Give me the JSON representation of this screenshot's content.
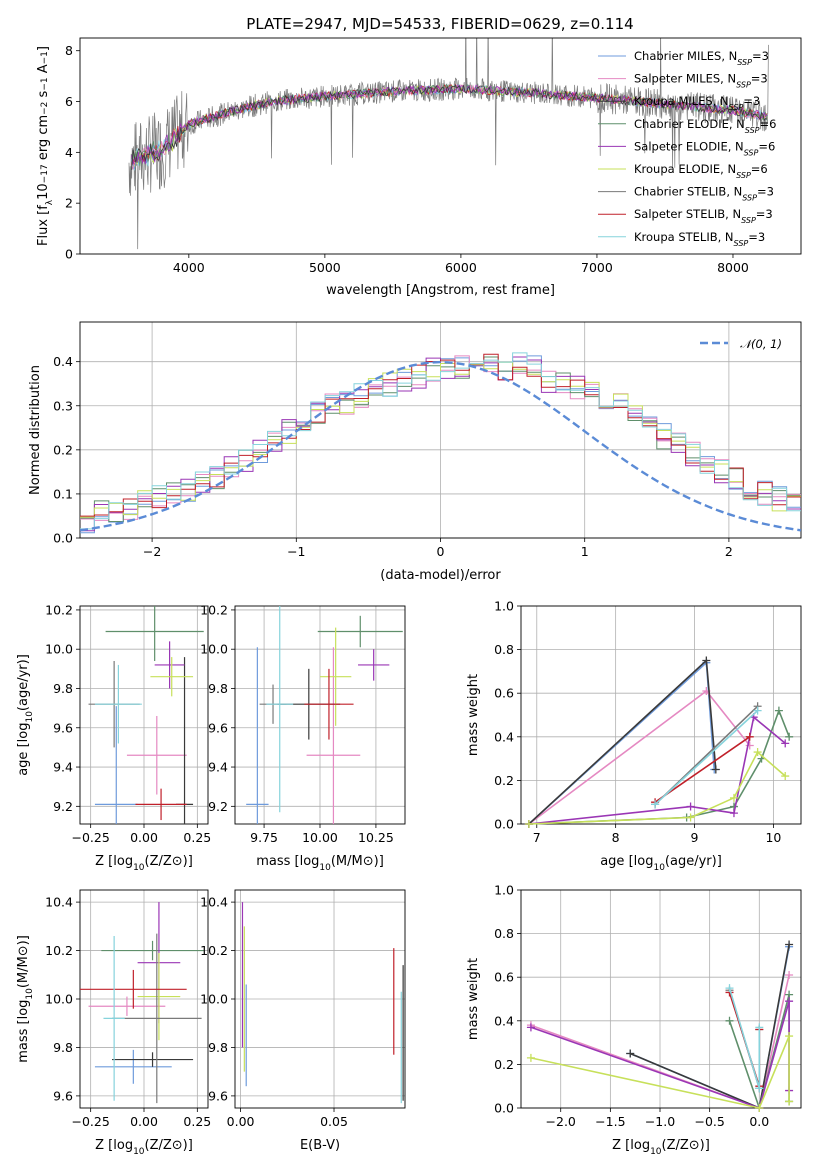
{
  "figure_title": "PLATE=2947, MJD=54533, FIBERID=0629, z=0.114",
  "colors": [
    "#6f9bdc",
    "#e589c2",
    "#3a3a3a",
    "#5f8f6b",
    "#9a36b5",
    "#c7e05a",
    "#7a7a7a",
    "#c0202a",
    "#86d3dc"
  ],
  "chart_data": [
    {
      "id": "spectrum",
      "type": "line",
      "xlabel": "wavelength [Angstrom, rest frame]",
      "ylabel": "Flux [f_λ 10^-17 erg cm^-2 s^-1 A^-1]",
      "xlim": [
        3200,
        8500
      ],
      "ylim": [
        0,
        8.5
      ],
      "xticks": [
        "4000",
        "5000",
        "6000",
        "7000",
        "8000"
      ],
      "yticks": [
        "0",
        "2",
        "4",
        "6",
        "8"
      ],
      "legend_position": "right",
      "continuum": {
        "x": [
          3600,
          3800,
          4000,
          4300,
          4600,
          5000,
          5500,
          6000,
          6500,
          7000,
          7500,
          8000,
          8250
        ],
        "y": [
          3.7,
          4.1,
          5.1,
          5.6,
          6.0,
          6.2,
          6.4,
          6.5,
          6.35,
          6.15,
          5.9,
          5.65,
          5.4
        ]
      },
      "legend": [
        {
          "main": "Chabrier MILES, N",
          "sub": "SSP",
          "tail": "=3"
        },
        {
          "main": "Salpeter MILES, N",
          "sub": "SSP",
          "tail": "=3"
        },
        {
          "main": "Kroupa MILES, N",
          "sub": "SSP",
          "tail": "=3"
        },
        {
          "main": "Chabrier ELODIE, N",
          "sub": "SSP",
          "tail": "=6"
        },
        {
          "main": "Salpeter ELODIE, N",
          "sub": "SSP",
          "tail": "=6"
        },
        {
          "main": "Kroupa ELODIE, N",
          "sub": "SSP",
          "tail": "=6"
        },
        {
          "main": "Chabrier STELIB, N",
          "sub": "SSP",
          "tail": "=3"
        },
        {
          "main": "Salpeter STELIB, N",
          "sub": "SSP",
          "tail": "=3"
        },
        {
          "main": "Kroupa STELIB, N",
          "sub": "SSP",
          "tail": "=3"
        }
      ]
    },
    {
      "id": "residual-histogram",
      "type": "bar",
      "xlabel": "(data-model)/error",
      "ylabel": "Normed distribution",
      "xlim": [
        -2.5,
        2.5
      ],
      "ylim": [
        0,
        0.49
      ],
      "xticks": [
        "−2",
        "−1",
        "0",
        "1",
        "2"
      ],
      "yticks": [
        "0.0",
        "0.1",
        "0.2",
        "0.3",
        "0.4"
      ],
      "legend": "N(0,1)",
      "bin_edges_start": -2.5,
      "bin_width": 0.1,
      "values": [
        0.03,
        0.06,
        0.06,
        0.07,
        0.08,
        0.09,
        0.1,
        0.11,
        0.13,
        0.14,
        0.16,
        0.18,
        0.2,
        0.22,
        0.24,
        0.26,
        0.28,
        0.3,
        0.31,
        0.32,
        0.34,
        0.35,
        0.36,
        0.37,
        0.38,
        0.38,
        0.39,
        0.39,
        0.39,
        0.37,
        0.4,
        0.39,
        0.36,
        0.35,
        0.34,
        0.33,
        0.31,
        0.3,
        0.28,
        0.26,
        0.23,
        0.21,
        0.19,
        0.17,
        0.15,
        0.13,
        0.11,
        0.1,
        0.09,
        0.08
      ],
      "normal_curve": "gaussian mean 0 sigma 1"
    },
    {
      "id": "age-vs-z",
      "type": "scatter",
      "xlabel": "Z [log10(Z/Z⊙)]",
      "ylabel": "age  [log10(age/yr)]",
      "xlim": [
        -0.3,
        0.3
      ],
      "ylim": [
        9.11,
        10.22
      ],
      "xticks": [
        "−0.25",
        "0.00",
        "0.25"
      ],
      "yticks": [
        "9.2",
        "9.4",
        "9.6",
        "9.8",
        "10.0",
        "10.2"
      ],
      "points": [
        {
          "x": -0.13,
          "y": 9.21,
          "xerr": 0.1,
          "yerr": 0.5,
          "s": 0
        },
        {
          "x": 0.06,
          "y": 9.46,
          "xerr": 0.14,
          "yerr": 0.2,
          "s": 1
        },
        {
          "x": 0.19,
          "y": 9.21,
          "xerr": 0.04,
          "yerr": 0.75,
          "s": 2
        },
        {
          "x": 0.05,
          "y": 10.09,
          "xerr": 0.23,
          "yerr": 0.15,
          "s": 3
        },
        {
          "x": 0.12,
          "y": 9.92,
          "xerr": 0.07,
          "yerr": 0.12,
          "s": 4
        },
        {
          "x": 0.13,
          "y": 9.86,
          "xerr": 0.1,
          "yerr": 0.1,
          "s": 5
        },
        {
          "x": -0.14,
          "y": 9.72,
          "xerr": 0.12,
          "yerr": 0.22,
          "s": 6
        },
        {
          "x": 0.08,
          "y": 9.21,
          "xerr": 0.12,
          "yerr": 0.08,
          "s": 7
        },
        {
          "x": -0.12,
          "y": 9.72,
          "xerr": 0.11,
          "yerr": 0.2,
          "s": 8
        }
      ]
    },
    {
      "id": "age-vs-mass",
      "type": "scatter",
      "xlabel": "mass [log10(M/M⊙)]",
      "ylabel": "",
      "xlim": [
        9.62,
        10.38
      ],
      "ylim": [
        9.11,
        10.22
      ],
      "xticks": [
        "9.75",
        "10.00",
        "10.25"
      ],
      "yticks": [
        "9.2",
        "9.4",
        "9.6",
        "9.8",
        "10.0",
        "10.2"
      ],
      "points": [
        {
          "x": 9.72,
          "y": 9.21,
          "xerr": 0.05,
          "yerr": 0.8,
          "s": 0
        },
        {
          "x": 10.06,
          "y": 9.46,
          "xerr": 0.12,
          "yerr": 0.55,
          "s": 1
        },
        {
          "x": 9.95,
          "y": 9.72,
          "xerr": 0.14,
          "yerr": 0.18,
          "s": 2
        },
        {
          "x": 10.18,
          "y": 10.09,
          "xerr": 0.19,
          "yerr": 0.08,
          "s": 3
        },
        {
          "x": 10.24,
          "y": 9.92,
          "xerr": 0.07,
          "yerr": 0.08,
          "s": 4
        },
        {
          "x": 10.07,
          "y": 9.86,
          "xerr": 0.07,
          "yerr": 0.25,
          "s": 5
        },
        {
          "x": 9.79,
          "y": 9.72,
          "xerr": 0.06,
          "yerr": 0.1,
          "s": 6
        },
        {
          "x": 10.04,
          "y": 9.72,
          "xerr": 0.11,
          "yerr": 0.18,
          "s": 7
        },
        {
          "x": 9.82,
          "y": 9.72,
          "xerr": 0.06,
          "yerr": 0.55,
          "s": 8
        }
      ]
    },
    {
      "id": "mass-weight-vs-age",
      "type": "line",
      "xlabel": "age  [log10(age/yr)]",
      "ylabel": "mass weight",
      "xlim": [
        6.8,
        10.35
      ],
      "ylim": [
        0,
        1.0
      ],
      "xticks": [
        "7",
        "8",
        "9",
        "10"
      ],
      "yticks": [
        "0.0",
        "0.2",
        "0.4",
        "0.6",
        "0.8",
        "1.0"
      ],
      "series": [
        {
          "s": 0,
          "x": [
            6.9,
            9.15,
            9.25
          ],
          "y": [
            0.0,
            0.74,
            0.25
          ]
        },
        {
          "s": 1,
          "x": [
            6.9,
            9.15,
            9.7
          ],
          "y": [
            0.0,
            0.61,
            0.36
          ]
        },
        {
          "s": 2,
          "x": [
            6.9,
            9.15,
            9.27
          ],
          "y": [
            0.0,
            0.75,
            0.25
          ]
        },
        {
          "s": 3,
          "x": [
            6.9,
            8.9,
            9.5,
            9.85,
            10.07,
            10.2
          ],
          "y": [
            0.0,
            0.03,
            0.08,
            0.3,
            0.52,
            0.4
          ]
        },
        {
          "s": 4,
          "x": [
            6.9,
            8.95,
            9.5,
            9.75,
            10.15
          ],
          "y": [
            0.0,
            0.08,
            0.05,
            0.49,
            0.37
          ]
        },
        {
          "s": 5,
          "x": [
            6.9,
            8.95,
            9.5,
            9.8,
            10.15
          ],
          "y": [
            0.0,
            0.03,
            0.12,
            0.33,
            0.22
          ]
        },
        {
          "s": 6,
          "x": [
            8.5,
            9.8
          ],
          "y": [
            0.09,
            0.54
          ]
        },
        {
          "s": 7,
          "x": [
            8.5,
            9.7
          ],
          "y": [
            0.1,
            0.4
          ]
        },
        {
          "s": 8,
          "x": [
            8.5,
            9.8
          ],
          "y": [
            0.09,
            0.52
          ]
        }
      ]
    },
    {
      "id": "mass-vs-z",
      "type": "scatter",
      "xlabel": "Z [log10(Z/Z⊙)]",
      "ylabel": "mass [log10(M/M⊙)]",
      "xlim": [
        -0.3,
        0.3
      ],
      "ylim": [
        9.55,
        10.45
      ],
      "xticks": [
        "−0.25",
        "0.00",
        "0.25"
      ],
      "yticks": [
        "9.6",
        "9.8",
        "10.0",
        "10.2",
        "10.4"
      ],
      "points": [
        {
          "x": -0.05,
          "y": 9.72,
          "xerr": 0.18,
          "yerr": 0.07,
          "s": 0
        },
        {
          "x": -0.08,
          "y": 9.97,
          "xerr": 0.18,
          "yerr": 0.04,
          "s": 1
        },
        {
          "x": 0.04,
          "y": 9.75,
          "xerr": 0.19,
          "yerr": 0.03,
          "s": 2
        },
        {
          "x": 0.04,
          "y": 10.2,
          "xerr": 0.24,
          "yerr": 0.04,
          "s": 3
        },
        {
          "x": 0.07,
          "y": 10.15,
          "xerr": 0.1,
          "yerr": 0.25,
          "s": 4
        },
        {
          "x": 0.07,
          "y": 10.01,
          "xerr": 0.1,
          "yerr": 0.18,
          "s": 5
        },
        {
          "x": 0.06,
          "y": 9.92,
          "xerr": 0.21,
          "yerr": 0.35,
          "s": 6
        },
        {
          "x": -0.05,
          "y": 10.04,
          "xerr": 0.25,
          "yerr": 0.08,
          "s": 7
        },
        {
          "x": -0.14,
          "y": 9.92,
          "xerr": 0.05,
          "yerr": 0.34,
          "s": 8
        }
      ]
    },
    {
      "id": "mass-vs-ebv",
      "type": "scatter",
      "xlabel": "E(B-V)",
      "ylabel": "",
      "xlim": [
        -0.003,
        0.088
      ],
      "ylim": [
        9.55,
        10.45
      ],
      "xticks": [
        "0.00",
        "0.05"
      ],
      "yticks": [
        "9.6",
        "9.8",
        "10.0",
        "10.2",
        "10.4"
      ],
      "points": [
        {
          "x": 0.003,
          "y": 9.85,
          "yerr": 0.21,
          "s": 0
        },
        {
          "x": 0.001,
          "y": 10.1,
          "yerr": 0.3,
          "s": 4
        },
        {
          "x": 0.002,
          "y": 10.0,
          "yerr": 0.3,
          "s": 5
        },
        {
          "x": 0.082,
          "y": 9.99,
          "yerr": 0.22,
          "s": 7
        },
        {
          "x": 0.086,
          "y": 9.8,
          "yerr": 0.23,
          "s": 8
        },
        {
          "x": 0.087,
          "y": 9.86,
          "yerr": 0.28,
          "s": 2
        }
      ]
    },
    {
      "id": "mass-weight-vs-z",
      "type": "line",
      "xlabel": "Z [log10(Z/Z⊙)]",
      "ylabel": "mass weight",
      "xlim": [
        -2.4,
        0.42
      ],
      "ylim": [
        0,
        1.0
      ],
      "xticks": [
        "−2.0",
        "−1.5",
        "−1.0",
        "−0.5",
        "0.0"
      ],
      "yticks": [
        "0.0",
        "0.2",
        "0.4",
        "0.6",
        "0.8",
        "1.0"
      ],
      "series": [
        {
          "s": 0,
          "x": [
            -1.3,
            0.0,
            0.3
          ],
          "y": [
            0.25,
            0.0,
            0.74
          ]
        },
        {
          "s": 1,
          "x": [
            -2.3,
            0.0,
            0.3
          ],
          "y": [
            0.38,
            0.0,
            0.61
          ]
        },
        {
          "s": 2,
          "x": [
            -1.3,
            0.0,
            0.3
          ],
          "y": [
            0.25,
            0.0,
            0.75
          ]
        },
        {
          "s": 3,
          "x": [
            -0.3,
            0.0,
            0.3,
            0.3
          ],
          "y": [
            0.4,
            0.0,
            0.52,
            0.03
          ]
        },
        {
          "s": 4,
          "x": [
            -2.3,
            0.0,
            0.3,
            0.3
          ],
          "y": [
            0.37,
            0.0,
            0.49,
            0.08
          ]
        },
        {
          "s": 5,
          "x": [
            -2.3,
            0.0,
            0.3,
            0.3
          ],
          "y": [
            0.23,
            0.0,
            0.33,
            0.03
          ]
        },
        {
          "s": 6,
          "x": [
            -0.3,
            0.0,
            0.0
          ],
          "y": [
            0.54,
            0.09,
            0.36
          ]
        },
        {
          "s": 7,
          "x": [
            -0.3,
            0.0,
            0.0
          ],
          "y": [
            0.53,
            0.1,
            0.36
          ]
        },
        {
          "s": 8,
          "x": [
            -0.3,
            0.0,
            0.0
          ],
          "y": [
            0.55,
            0.09,
            0.37
          ]
        }
      ]
    }
  ]
}
